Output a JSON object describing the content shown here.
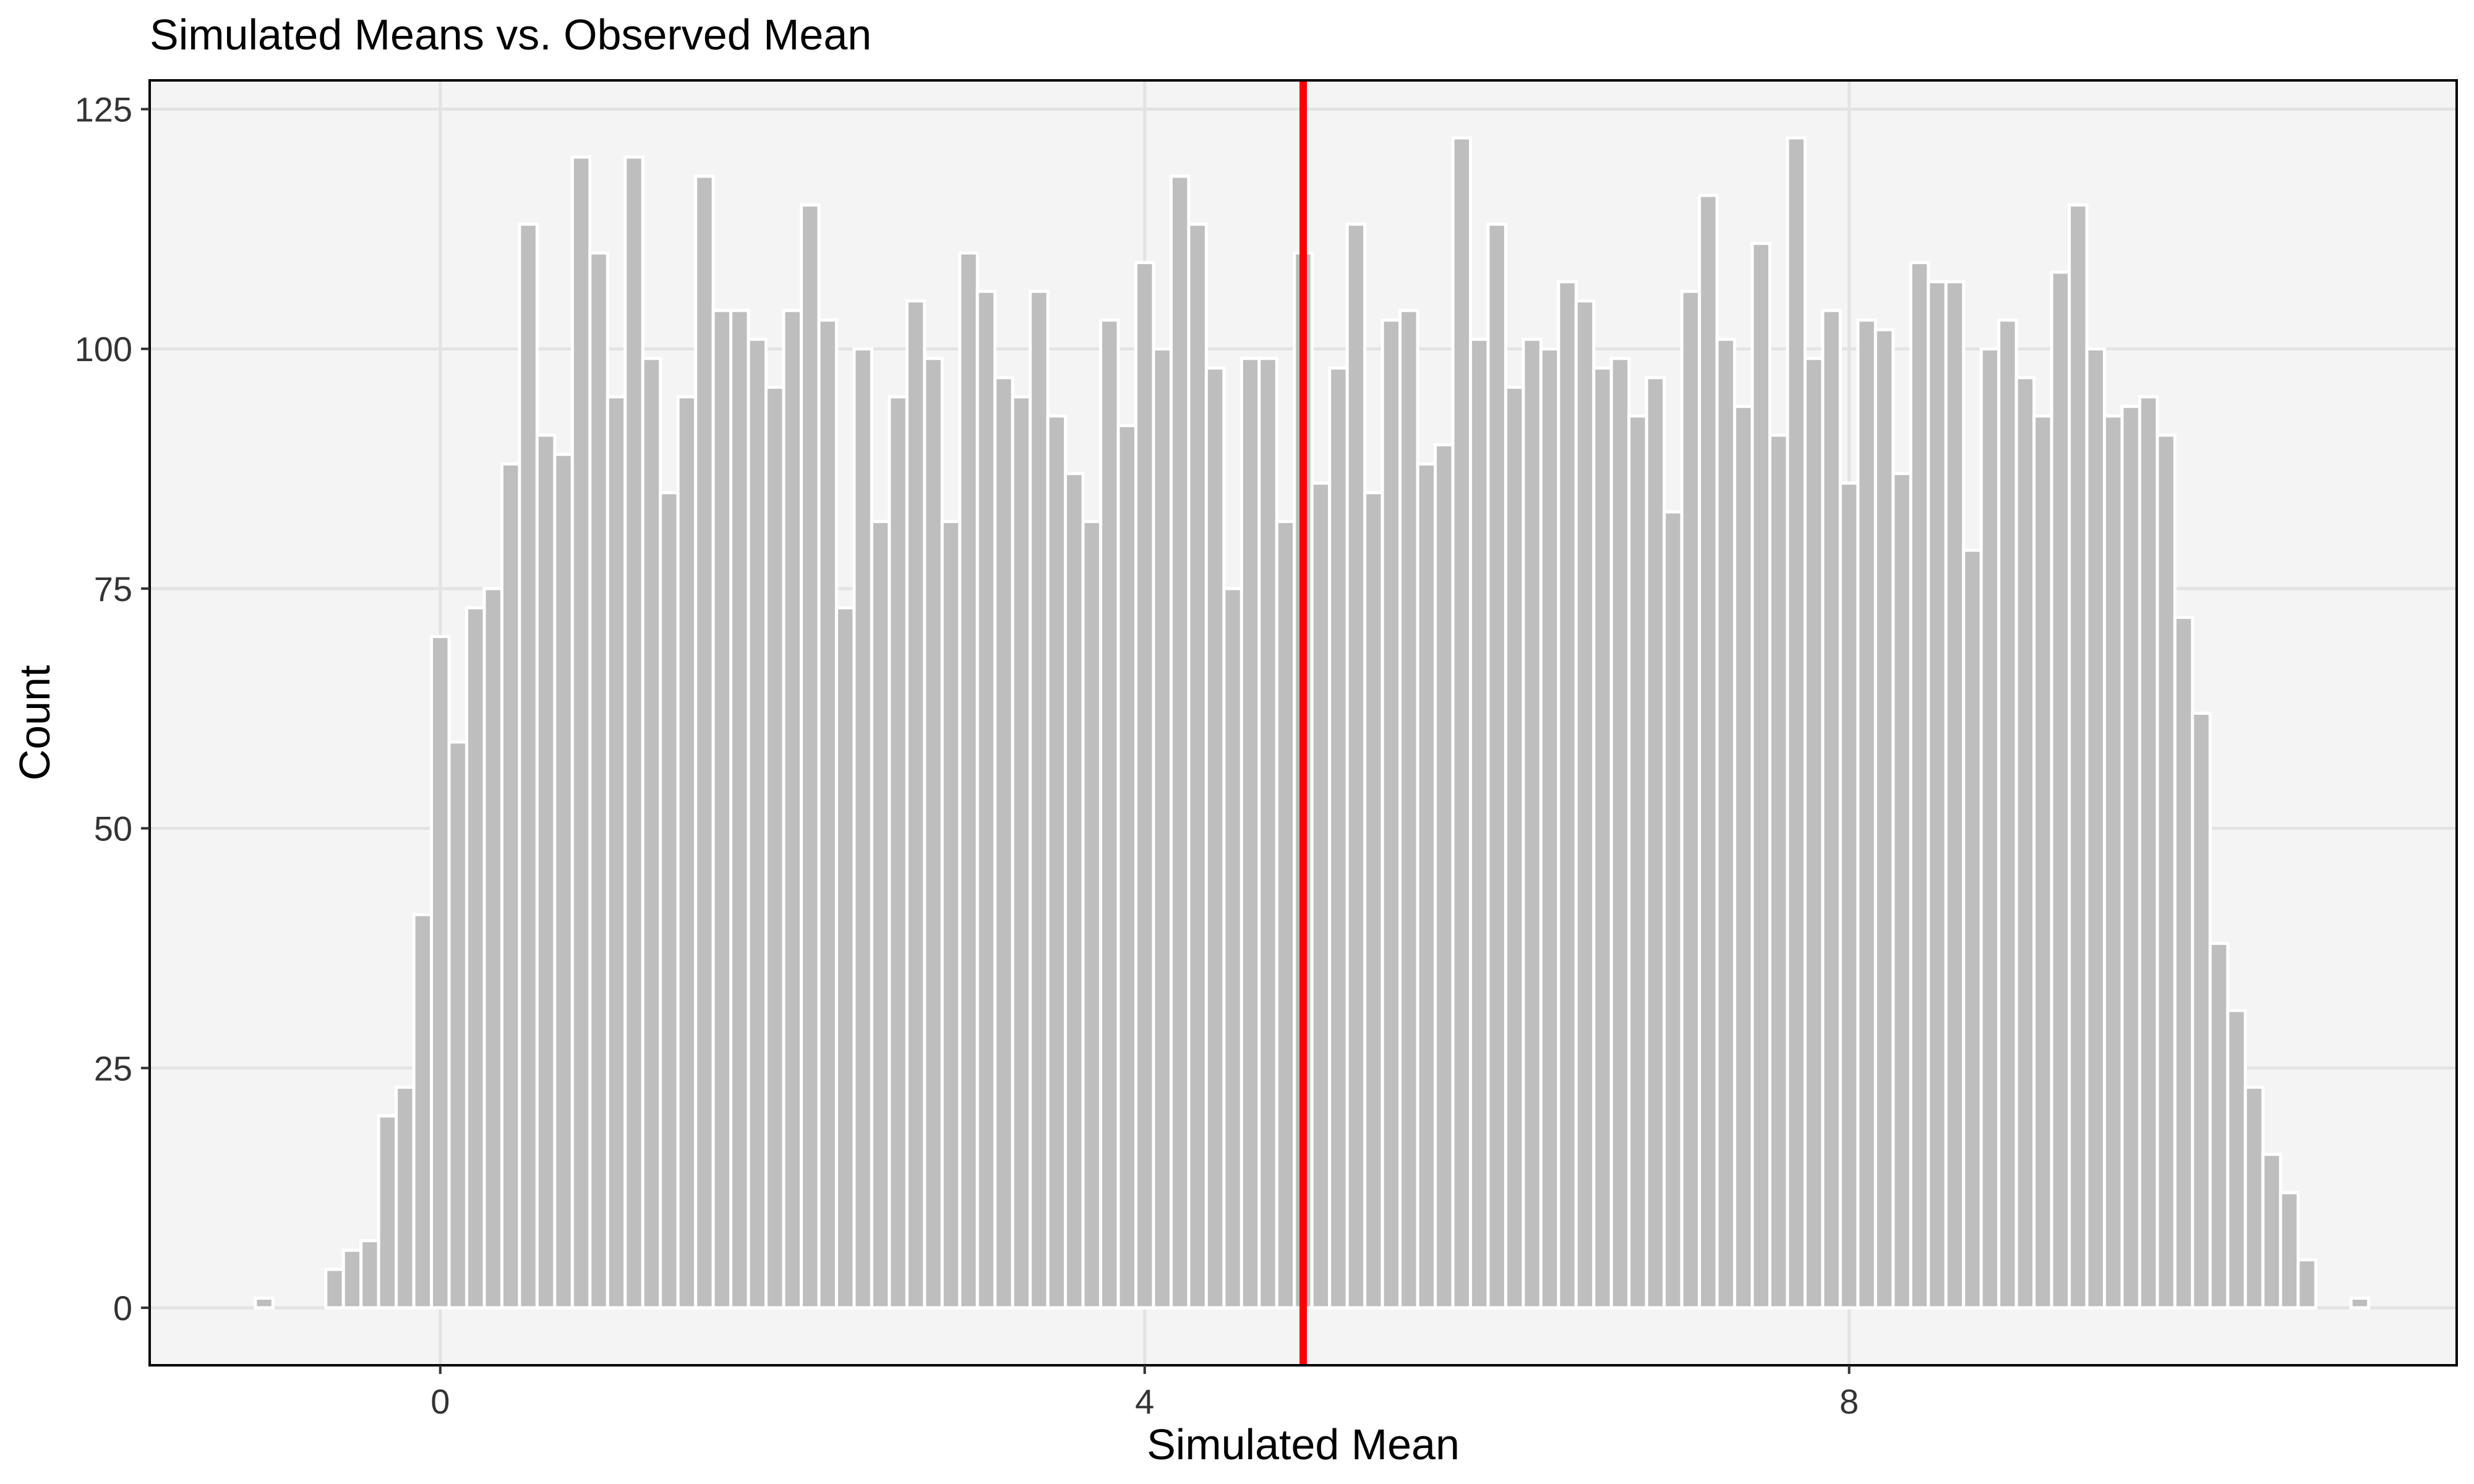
{
  "chart_data": {
    "type": "bar",
    "title": "Simulated Means vs. Observed Mean",
    "xlabel": "Simulated Mean",
    "ylabel": "Count",
    "xlim": [
      -1.65,
      11.45
    ],
    "ylim": [
      -6,
      128
    ],
    "x_ticks": [
      0,
      4,
      8
    ],
    "y_ticks": [
      0,
      25,
      50,
      75,
      100,
      125
    ],
    "grid": true,
    "bin_width": 0.1,
    "bin_start": -1.0,
    "values": [
      1,
      0,
      0,
      0,
      4,
      6,
      7,
      20,
      23,
      41,
      70,
      59,
      73,
      75,
      88,
      113,
      91,
      89,
      120,
      110,
      95,
      120,
      99,
      85,
      95,
      118,
      104,
      104,
      101,
      96,
      104,
      115,
      103,
      73,
      100,
      82,
      95,
      105,
      99,
      82,
      110,
      106,
      97,
      95,
      106,
      93,
      87,
      82,
      103,
      92,
      109,
      100,
      118,
      113,
      98,
      75,
      99,
      99,
      82,
      110,
      86,
      98,
      113,
      85,
      103,
      104,
      88,
      90,
      122,
      101,
      113,
      96,
      101,
      100,
      107,
      105,
      98,
      99,
      93,
      97,
      83,
      106,
      116,
      101,
      94,
      111,
      91,
      122,
      99,
      104,
      86,
      103,
      102,
      87,
      109,
      107,
      107,
      79,
      100,
      103,
      97,
      93,
      108,
      115,
      100,
      93,
      94,
      95,
      91,
      72,
      62,
      38,
      31,
      23,
      16,
      12,
      5,
      0,
      0,
      1
    ],
    "reference_line": {
      "x": 4.9,
      "label": "Observed Mean"
    },
    "colors": {
      "bar_fill": "#bebebe",
      "bar_stroke": "#ffffff",
      "panel_bg": "#f4f4f4",
      "grid": "#e3e3e3",
      "reference_line": "#ff0000",
      "frame": "#000000"
    }
  }
}
